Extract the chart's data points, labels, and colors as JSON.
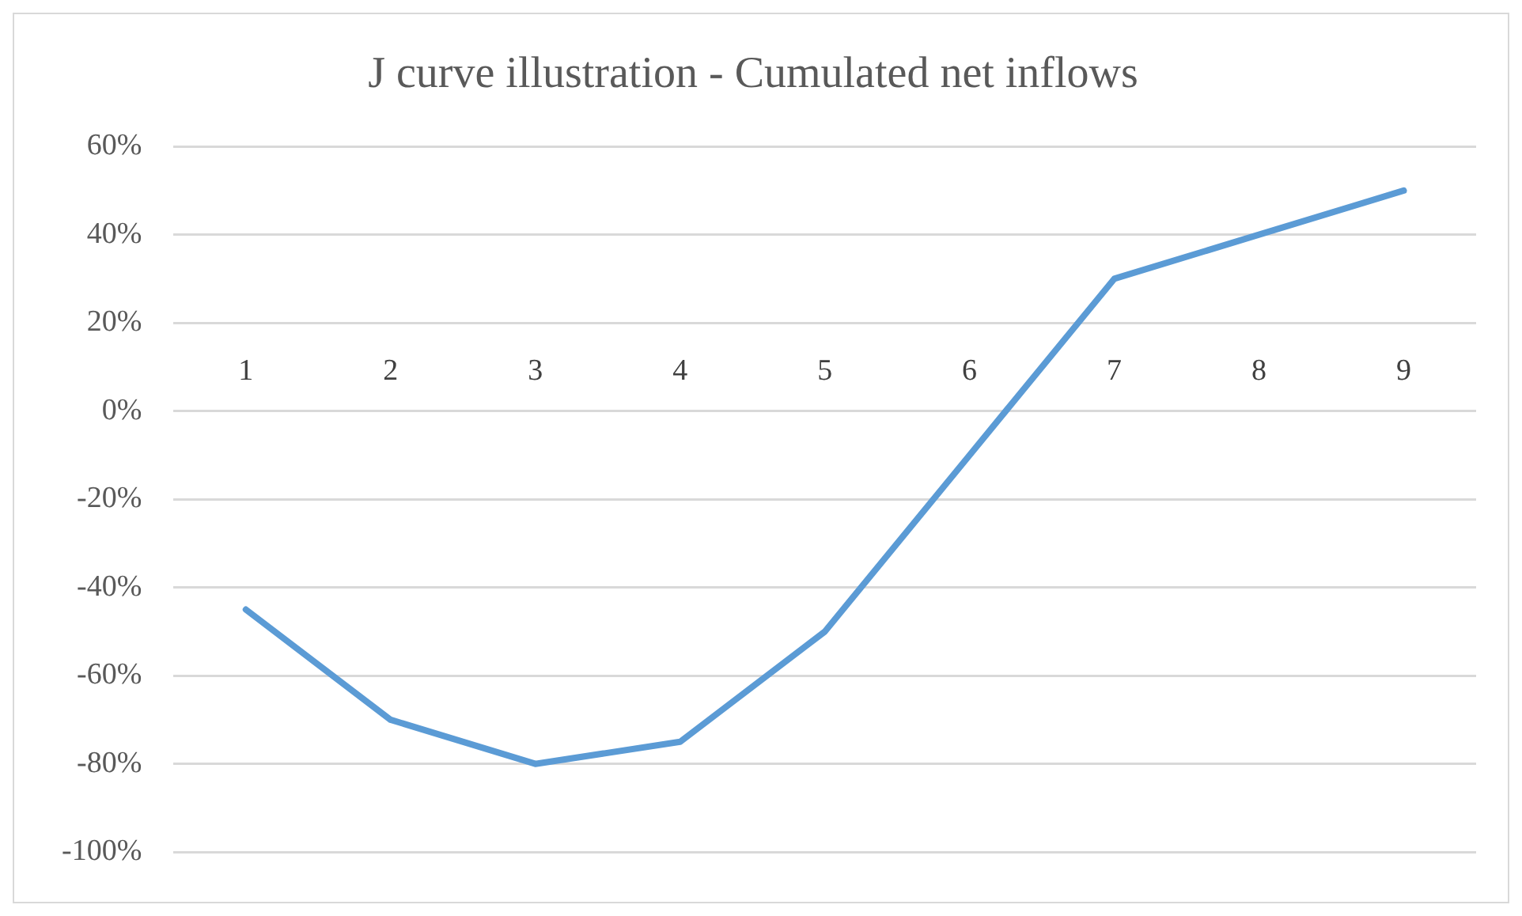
{
  "chart_data": {
    "type": "line",
    "title": "J curve illustration - Cumulated net inflows",
    "categories": [
      "1",
      "2",
      "3",
      "4",
      "5",
      "6",
      "7",
      "8",
      "9"
    ],
    "series": [
      {
        "color": "#5b9bd5",
        "values": [
          -45,
          -70,
          -80,
          -75,
          -50,
          -10,
          30,
          40,
          50
        ]
      }
    ],
    "ylim": [
      -100,
      60
    ],
    "yticks": [
      {
        "value": -100,
        "label": "-100%"
      },
      {
        "value": -80,
        "label": "-80%"
      },
      {
        "value": -60,
        "label": "-60%"
      },
      {
        "value": -40,
        "label": "-40%"
      },
      {
        "value": -20,
        "label": "-20%"
      },
      {
        "value": 0,
        "label": "0%"
      },
      {
        "value": 20,
        "label": "20%"
      },
      {
        "value": 40,
        "label": "40%"
      },
      {
        "value": 60,
        "label": "60%"
      }
    ],
    "grid": "y",
    "legend": false,
    "marker": "none",
    "line_style": "solid"
  }
}
